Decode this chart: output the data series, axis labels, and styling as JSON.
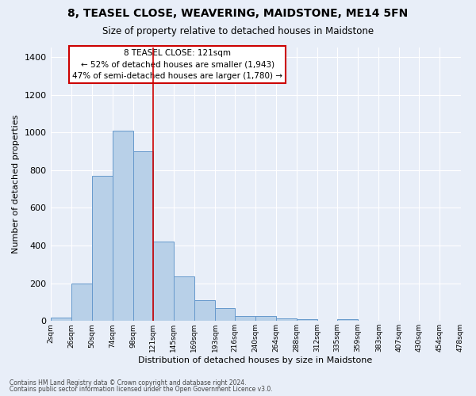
{
  "title": "8, TEASEL CLOSE, WEAVERING, MAIDSTONE, ME14 5FN",
  "subtitle": "Size of property relative to detached houses in Maidstone",
  "xlabel": "Distribution of detached houses by size in Maidstone",
  "ylabel": "Number of detached properties",
  "footnote1": "Contains HM Land Registry data © Crown copyright and database right 2024.",
  "footnote2": "Contains public sector information licensed under the Open Government Licence v3.0.",
  "annotation_line1": "8 TEASEL CLOSE: 121sqm",
  "annotation_line2": "← 52% of detached houses are smaller (1,943)",
  "annotation_line3": "47% of semi-detached houses are larger (1,780) →",
  "bar_color": "#b8d0e8",
  "bar_edge_color": "#6699cc",
  "vline_color": "#cc0000",
  "vline_x": 121,
  "bins": [
    2,
    26,
    50,
    74,
    98,
    121,
    145,
    169,
    193,
    216,
    240,
    264,
    288,
    312,
    335,
    359,
    383,
    407,
    430,
    454,
    478
  ],
  "bin_labels": [
    "2sqm",
    "26sqm",
    "50sqm",
    "74sqm",
    "98sqm",
    "121sqm",
    "145sqm",
    "169sqm",
    "193sqm",
    "216sqm",
    "240sqm",
    "264sqm",
    "288sqm",
    "312sqm",
    "335sqm",
    "359sqm",
    "383sqm",
    "407sqm",
    "430sqm",
    "454sqm",
    "478sqm"
  ],
  "heights": [
    20,
    200,
    770,
    1010,
    900,
    420,
    235,
    110,
    70,
    25,
    25,
    15,
    10,
    0,
    10,
    0,
    0,
    0,
    0,
    0
  ],
  "ylim": [
    0,
    1450
  ],
  "yticks": [
    0,
    200,
    400,
    600,
    800,
    1000,
    1200,
    1400
  ],
  "background_color": "#e8eef8",
  "plot_background": "#e8eef8",
  "grid_color": "#ffffff",
  "annotation_box_facecolor": "white",
  "annotation_box_edgecolor": "#cc0000"
}
